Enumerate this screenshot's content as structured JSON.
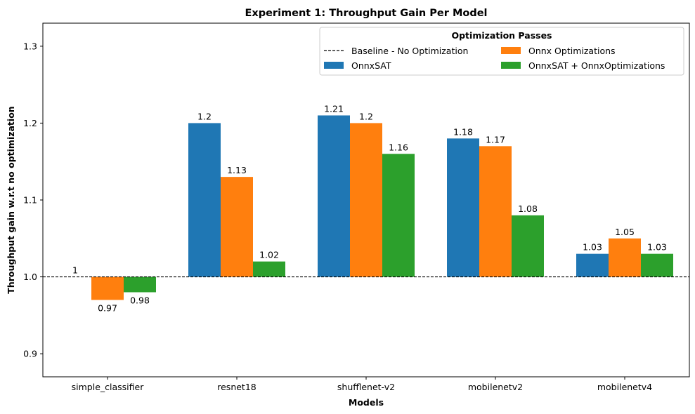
{
  "chart_data": {
    "type": "bar",
    "title": "Experiment 1: Throughput Gain Per Model",
    "xlabel": "Models",
    "ylabel": "Throughput gain w.r.t no optimization",
    "categories": [
      "simple_classifier",
      "resnet18",
      "shufflenet-v2",
      "mobilenetv2",
      "mobilenetv4"
    ],
    "series": [
      {
        "name": "OnnxSAT",
        "color": "#1f77b4",
        "values": [
          1.0,
          1.2,
          1.21,
          1.18,
          1.03
        ],
        "labels": [
          "1",
          "1.2",
          "1.21",
          "1.18",
          "1.03"
        ]
      },
      {
        "name": "Onnx Optimizations",
        "color": "#ff7f0e",
        "values": [
          0.97,
          1.13,
          1.2,
          1.17,
          1.05
        ],
        "labels": [
          "0.97",
          "1.13",
          "1.2",
          "1.17",
          "1.05"
        ]
      },
      {
        "name": "OnnxSAT + OnnxOptimizations",
        "color": "#2ca02c",
        "values": [
          0.98,
          1.02,
          1.16,
          1.08,
          1.03
        ],
        "labels": [
          "0.98",
          "1.02",
          "1.16",
          "1.08",
          "1.03"
        ]
      }
    ],
    "baseline": {
      "name": "Baseline - No Optimization",
      "value": 1.0,
      "color": "#000000"
    },
    "ylim": [
      0.87,
      1.33
    ],
    "yticks": [
      0.9,
      1.0,
      1.1,
      1.2,
      1.3
    ],
    "ytick_labels": [
      "0.9",
      "1.0",
      "1.1",
      "1.2",
      "1.3"
    ],
    "legend": {
      "title": "Optimization Passes",
      "placement": "top-right",
      "columns": 2
    },
    "grid": false
  }
}
